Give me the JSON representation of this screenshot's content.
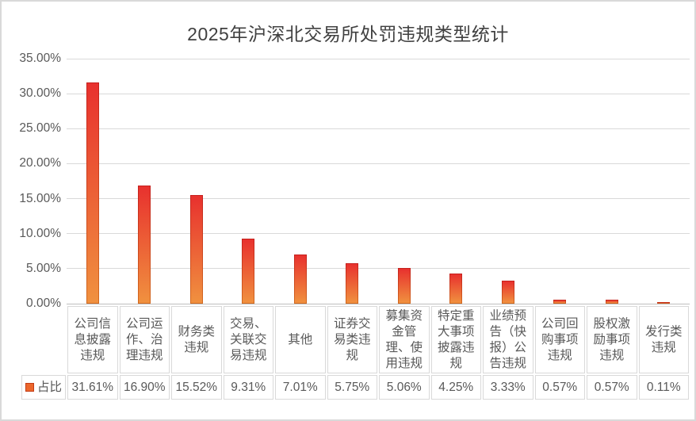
{
  "chart_data": {
    "type": "bar",
    "title": "2025年沪深北交易所处罚违规类型统计",
    "legend": "占比",
    "categories": [
      "公司信息披露违规",
      "公司运作、治理违规",
      "财务类违规",
      "交易、关联交易违规",
      "其他",
      "证券交易类违规",
      "募集资金管理、使用违规",
      "特定重大事项披露违规",
      "业绩预告（快报）公告违规",
      "公司回购事项违规",
      "股权激励事项违规",
      "发行类违规"
    ],
    "values": [
      31.61,
      16.9,
      15.52,
      9.31,
      7.01,
      5.75,
      5.06,
      4.25,
      3.33,
      0.57,
      0.57,
      0.11
    ],
    "value_labels": [
      "31.61%",
      "16.90%",
      "15.52%",
      "9.31%",
      "7.01%",
      "5.75%",
      "5.06%",
      "4.25%",
      "3.33%",
      "0.57%",
      "0.57%",
      "0.11%"
    ],
    "ylim": [
      0,
      35
    ],
    "ytick_step": 5,
    "ytick_labels": [
      "0.00%",
      "5.00%",
      "10.00%",
      "15.00%",
      "20.00%",
      "25.00%",
      "30.00%",
      "35.00%"
    ],
    "grid": true,
    "legend_position": "table-left",
    "colors": {
      "bar_top": "#e8312e",
      "bar_bottom": "#f0913f",
      "bar_edge_top": "#c5201d",
      "bar_edge_bottom": "#d2691e",
      "legend_fill": "#ec672c",
      "legend_edge": "#c23c16",
      "gridline": "#d9d9d9",
      "axis_line": "#bfbfbf",
      "title_text": "#404040",
      "label_text": "#595959"
    }
  }
}
